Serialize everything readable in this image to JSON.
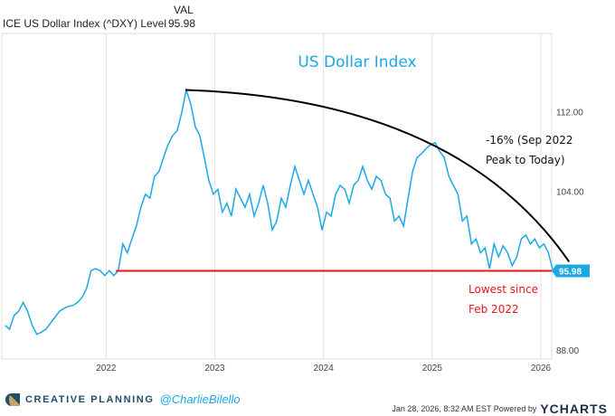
{
  "header": {
    "series_name": "ICE US Dollar Index (^DXY) Level",
    "val_label": "VAL",
    "value": "95.98"
  },
  "chart_data": {
    "type": "line",
    "title": "US Dollar Index",
    "xlabel": "",
    "ylabel": "",
    "xlim": [
      2021.04,
      2026.1
    ],
    "ylim": [
      87.1,
      119.9
    ],
    "x_ticks": [
      "2022",
      "2023",
      "2024",
      "2025",
      "2026"
    ],
    "y_ticks": [
      "112.00",
      "104.00",
      "88.00"
    ],
    "grid": "vertical",
    "series": [
      {
        "name": "ICE US Dollar Index (^DXY) Level",
        "color": "#1aa8e6",
        "x_start": 2021.07,
        "x_step": 0.041667,
        "values": [
          90.5,
          90.1,
          91.5,
          91.9,
          92.8,
          91.9,
          90.5,
          89.6,
          89.8,
          90.1,
          90.7,
          91.3,
          91.9,
          92.2,
          92.4,
          92.5,
          92.8,
          93.3,
          94.2,
          96.0,
          96.2,
          96.0,
          95.5,
          96.0,
          95.5,
          96.0,
          98.7,
          97.8,
          99.2,
          100.5,
          102.4,
          103.7,
          103.3,
          105.5,
          106.0,
          107.4,
          108.7,
          109.6,
          110.1,
          111.9,
          114.2,
          112.8,
          110.5,
          109.6,
          107.4,
          105.1,
          103.7,
          104.2,
          101.9,
          102.8,
          101.5,
          104.2,
          103.3,
          102.4,
          103.7,
          101.5,
          102.8,
          104.6,
          102.8,
          100.1,
          101.0,
          103.3,
          102.4,
          104.6,
          106.5,
          105.1,
          103.7,
          105.1,
          103.7,
          102.4,
          100.1,
          101.9,
          101.5,
          103.7,
          104.6,
          104.2,
          102.8,
          104.6,
          105.1,
          106.5,
          105.1,
          104.2,
          105.5,
          105.1,
          103.7,
          103.3,
          101.0,
          101.5,
          100.5,
          103.3,
          106.0,
          107.4,
          107.8,
          108.3,
          108.7,
          108.9,
          108.0,
          107.4,
          105.5,
          104.6,
          103.7,
          101.0,
          101.5,
          98.7,
          99.2,
          97.8,
          98.3,
          96.2,
          98.7,
          97.4,
          98.5,
          97.8,
          96.5,
          97.4,
          99.2,
          99.6,
          98.7,
          99.2,
          98.3,
          98.7,
          97.8,
          95.98
        ]
      }
    ],
    "last_value_label": "95.98",
    "annotations": {
      "decline_line": {
        "from": [
          2022.73,
          114.2
        ],
        "to": [
          2026.26,
          96.9
        ],
        "color": "#000000"
      },
      "low_line": {
        "from": [
          2022.09,
          95.98
        ],
        "to": [
          2026.1,
          95.98
        ],
        "color": "#e8141b"
      },
      "decline_text_1": "-16% (Sep 2022",
      "decline_text_2": "Peak to Today)",
      "low_text_1": "Lowest since",
      "low_text_2": "Feb 2022"
    }
  },
  "footer": {
    "brand": "CREATIVE PLANNING",
    "handle": "@CharlieBilello",
    "timestamp": "Jan 28, 2026, 8:32 AM EST Powered by",
    "ycharts": "YCHARTS"
  },
  "colors": {
    "line": "#1aa8e6",
    "red": "#e8141b",
    "accent": "#1aa8e6"
  }
}
